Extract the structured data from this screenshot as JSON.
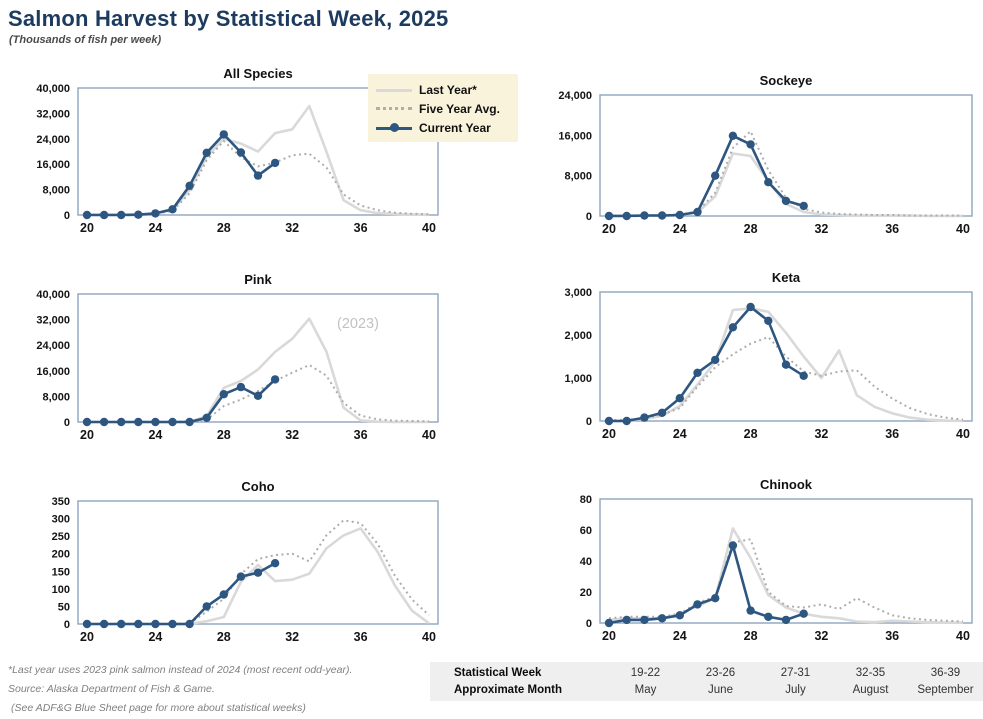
{
  "header": {
    "title": "Salmon Harvest by Statistical Week, 2025",
    "subtitle": "(Thousands of fish per week)"
  },
  "colors": {
    "title_navy": "#1d3a5f",
    "current_year_line": "#2d5680",
    "last_year_line": "#d9d9d9",
    "five_year_avg_line": "#adadad",
    "plot_border": "#8ea5be",
    "legend_background": "#faf3dc",
    "table_background": "#efefef",
    "footnote_gray": "#808080",
    "annotation_gray": "#c2c2c2"
  },
  "legend": {
    "items": [
      {
        "label": "Last Year*",
        "style": "solid-gray"
      },
      {
        "label": "Five Year Avg.",
        "style": "dotted-gray"
      },
      {
        "label": "Current Year",
        "style": "navy-marker"
      }
    ]
  },
  "annotations": {
    "pink_last_year_label": "(2023)"
  },
  "chart_data": [
    {
      "id": "all-species",
      "type": "line",
      "title": "All Species",
      "x_start": 20,
      "x_range": [
        20,
        40
      ],
      "x_ticks": [
        20,
        24,
        28,
        32,
        36,
        40
      ],
      "y_max": 40000,
      "y_ticks": [
        0,
        8000,
        16000,
        24000,
        32000,
        40000
      ],
      "grid": false,
      "series": [
        {
          "name": "Last Year*",
          "style": "last",
          "values": [
            100,
            100,
            100,
            200,
            500,
            1600,
            7800,
            18500,
            24000,
            22500,
            20000,
            25800,
            27000,
            34300,
            20000,
            4700,
            1500,
            600,
            300,
            200,
            100
          ]
        },
        {
          "name": "Five Year Avg.",
          "style": "avg",
          "values": [
            100,
            100,
            100,
            200,
            400,
            1300,
            6800,
            17300,
            23300,
            18200,
            15300,
            16500,
            18800,
            19300,
            15000,
            6500,
            3000,
            1500,
            700,
            400,
            200
          ]
        },
        {
          "name": "Current Year",
          "style": "current",
          "markers": true,
          "values": [
            0,
            0,
            0,
            100,
            500,
            1800,
            9200,
            19600,
            25400,
            19700,
            12400,
            16400
          ]
        }
      ]
    },
    {
      "id": "sockeye",
      "type": "line",
      "title": "Sockeye",
      "x_start": 20,
      "x_range": [
        20,
        40
      ],
      "x_ticks": [
        20,
        24,
        28,
        32,
        36,
        40
      ],
      "y_max": 24000,
      "y_ticks": [
        0,
        8000,
        16000,
        24000
      ],
      "grid": false,
      "series": [
        {
          "name": "Last Year*",
          "style": "last",
          "values": [
            100,
            100,
            100,
            100,
            200,
            700,
            3900,
            12400,
            11900,
            6900,
            2400,
            800,
            300,
            200,
            100,
            100,
            100,
            100,
            0,
            0,
            0
          ]
        },
        {
          "name": "Five Year Avg.",
          "style": "avg",
          "values": [
            100,
            100,
            100,
            200,
            300,
            900,
            4600,
            13500,
            16800,
            9100,
            3600,
            1400,
            700,
            400,
            300,
            200,
            200,
            100,
            100,
            100,
            100
          ]
        },
        {
          "name": "Current Year",
          "style": "current",
          "markers": true,
          "values": [
            0,
            0,
            100,
            100,
            200,
            800,
            8000,
            15900,
            14200,
            6700,
            3000,
            2000
          ]
        }
      ]
    },
    {
      "id": "pink",
      "type": "line",
      "title": "Pink",
      "x_start": 20,
      "x_range": [
        20,
        40
      ],
      "x_ticks": [
        20,
        24,
        28,
        32,
        36,
        40
      ],
      "y_max": 40000,
      "y_ticks": [
        0,
        8000,
        16000,
        24000,
        32000,
        40000
      ],
      "grid": false,
      "annotation": "(2023)",
      "series": [
        {
          "name": "Last Year*",
          "style": "last",
          "values": [
            0,
            0,
            0,
            0,
            0,
            0,
            100,
            1800,
            10700,
            12800,
            16400,
            21900,
            26000,
            32300,
            22000,
            4500,
            500,
            100,
            0,
            0,
            0
          ]
        },
        {
          "name": "Five Year Avg.",
          "style": "avg",
          "values": [
            0,
            0,
            0,
            0,
            0,
            100,
            200,
            700,
            5000,
            7000,
            9700,
            12800,
            15400,
            17800,
            14500,
            6000,
            2000,
            800,
            400,
            300,
            200
          ]
        },
        {
          "name": "Current Year",
          "style": "current",
          "markers": true,
          "values": [
            0,
            0,
            0,
            0,
            0,
            0,
            0,
            1300,
            8700,
            10900,
            8200,
            13300
          ]
        }
      ]
    },
    {
      "id": "keta",
      "type": "line",
      "title": "Keta",
      "x_start": 20,
      "x_range": [
        20,
        40
      ],
      "x_ticks": [
        20,
        24,
        28,
        32,
        36,
        40
      ],
      "y_max": 3000,
      "y_ticks": [
        0,
        1000,
        2000,
        3000
      ],
      "grid": false,
      "series": [
        {
          "name": "Last Year*",
          "style": "last",
          "values": [
            0,
            0,
            50,
            120,
            350,
            850,
            1380,
            2580,
            2620,
            2540,
            2050,
            1500,
            1000,
            1640,
            600,
            330,
            180,
            80,
            30,
            10,
            0
          ]
        },
        {
          "name": "Five Year Avg.",
          "style": "avg",
          "values": [
            20,
            30,
            60,
            150,
            300,
            800,
            1250,
            1550,
            1800,
            1950,
            1500,
            1150,
            1050,
            1150,
            1180,
            800,
            520,
            300,
            160,
            80,
            30
          ]
        },
        {
          "name": "Current Year",
          "style": "current",
          "markers": true,
          "values": [
            0,
            0,
            80,
            190,
            530,
            1120,
            1420,
            2180,
            2650,
            2330,
            1310,
            1050
          ]
        }
      ]
    },
    {
      "id": "coho",
      "type": "line",
      "title": "Coho",
      "x_start": 20,
      "x_range": [
        20,
        40
      ],
      "x_ticks": [
        20,
        24,
        28,
        32,
        36,
        40
      ],
      "y_max": 350,
      "y_ticks": [
        0,
        50,
        100,
        150,
        200,
        250,
        300,
        350
      ],
      "grid": false,
      "series": [
        {
          "name": "Last Year*",
          "style": "last",
          "values": [
            0,
            0,
            0,
            0,
            0,
            0,
            0,
            8,
            20,
            120,
            168,
            122,
            126,
            143,
            215,
            252,
            272,
            205,
            110,
            38,
            2
          ]
        },
        {
          "name": "Five Year Avg.",
          "style": "avg",
          "values": [
            0,
            0,
            0,
            0,
            0,
            0,
            2,
            35,
            72,
            142,
            185,
            196,
            200,
            178,
            252,
            295,
            287,
            228,
            138,
            70,
            25
          ]
        },
        {
          "name": "Current Year",
          "style": "current",
          "markers": true,
          "values": [
            0,
            0,
            0,
            0,
            0,
            0,
            0,
            50,
            84,
            135,
            146,
            173
          ]
        }
      ]
    },
    {
      "id": "chinook",
      "type": "line",
      "title": "Chinook",
      "x_start": 20,
      "x_range": [
        20,
        40
      ],
      "x_ticks": [
        20,
        24,
        28,
        32,
        36,
        40
      ],
      "y_max": 80,
      "y_ticks": [
        0,
        20,
        40,
        60,
        80
      ],
      "grid": false,
      "series": [
        {
          "name": "Last Year*",
          "style": "last",
          "values": [
            2,
            3,
            3,
            3,
            6,
            11,
            16,
            61,
            42,
            18,
            10,
            6,
            4,
            3,
            1,
            0.5,
            1.5,
            1,
            0.5,
            0.3,
            0.2
          ]
        },
        {
          "name": "Five Year Avg.",
          "style": "avg",
          "values": [
            3,
            4,
            4,
            4,
            6,
            13,
            17,
            52,
            54,
            20,
            11,
            10,
            12,
            9,
            16,
            10,
            5,
            3,
            2,
            1.5,
            1
          ]
        },
        {
          "name": "Current Year",
          "style": "current",
          "markers": true,
          "values": [
            0,
            2,
            2,
            3,
            5,
            12,
            16,
            50,
            8,
            4,
            2,
            6
          ]
        }
      ]
    }
  ],
  "footnotes": [
    "*Last year uses 2023 pink salmon instead of 2024 (most recent odd-year).",
    "Source: Alaska Department of Fish & Game.",
    "(See ADF&G Blue Sheet page for more about statistical weeks)"
  ],
  "week_table": {
    "row1_label": "Statistical Week",
    "row2_label": "Approximate Month",
    "columns": [
      {
        "weeks": "19-22",
        "month": "May"
      },
      {
        "weeks": "23-26",
        "month": "June"
      },
      {
        "weeks": "27-31",
        "month": "July"
      },
      {
        "weeks": "32-35",
        "month": "August"
      },
      {
        "weeks": "36-39",
        "month": "September"
      }
    ]
  }
}
